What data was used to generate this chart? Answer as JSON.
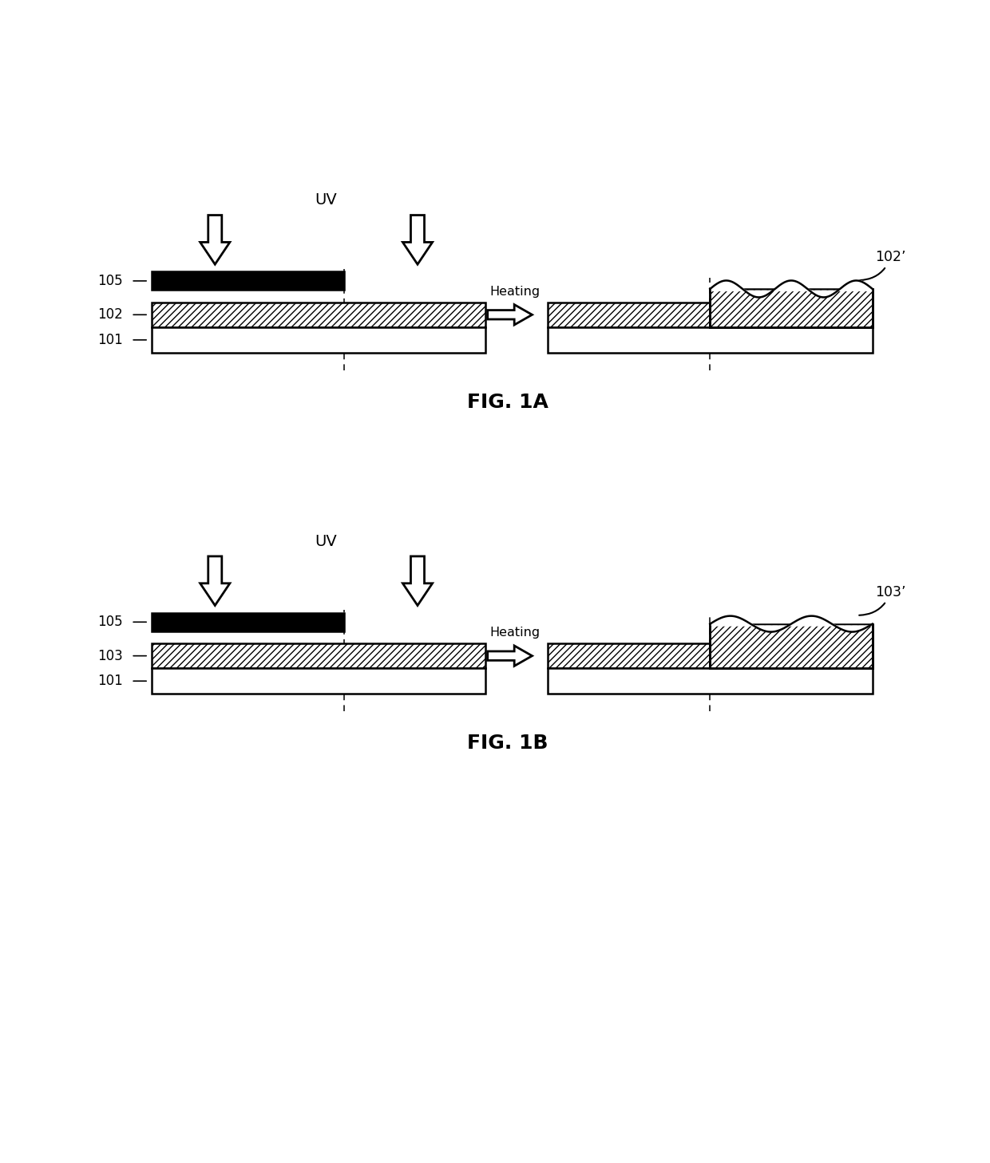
{
  "fig_width": 12.4,
  "fig_height": 14.57,
  "bg_color": "#ffffff",
  "fig1a_title": "FIG. 1A",
  "fig1b_title": "FIG. 1B",
  "label_101": "101",
  "label_102": "102",
  "label_102p": "102’",
  "label_103": "103",
  "label_103p": "103’",
  "label_105": "105",
  "label_uv": "UV",
  "label_heating": "Heating"
}
